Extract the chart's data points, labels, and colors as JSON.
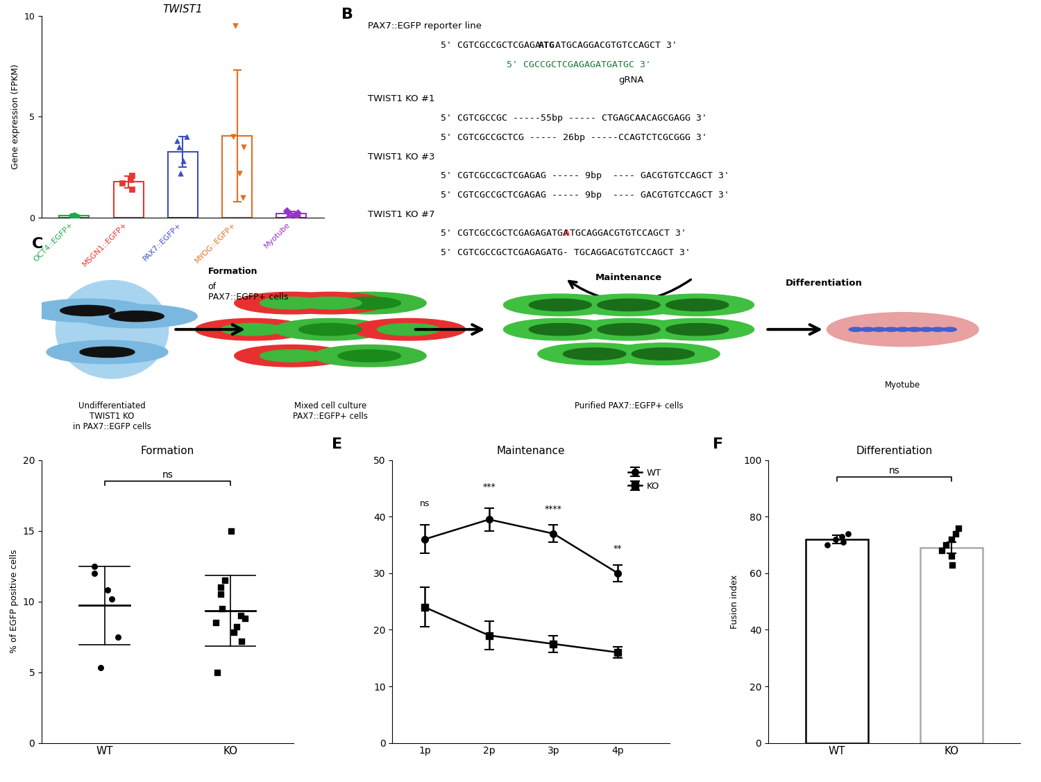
{
  "panel_A": {
    "title": "TWIST1",
    "ylabel": "Gene expression (FPKM)",
    "ylim": [
      0,
      10
    ],
    "yticks": [
      0,
      5,
      10
    ],
    "categories": [
      "OCT4::EGFP+",
      "MSGN1::EGFP+",
      "PAX7::EGFP+",
      "MYOG::EGFP+",
      "Myotube"
    ],
    "colors": [
      "#1ca84c",
      "#e8372e",
      "#3a4fc4",
      "#e07020",
      "#9932cc"
    ],
    "scatter_data": {
      "OCT4::EGFP+": [
        0.05,
        0.08,
        0.1,
        0.12
      ],
      "MSGN1::EGFP+": [
        1.4,
        1.7,
        1.9,
        2.1
      ],
      "PAX7::EGFP+": [
        2.2,
        2.8,
        3.5,
        3.8,
        4.0
      ],
      "MYOG::EGFP+": [
        1.0,
        2.2,
        3.5,
        4.0,
        9.5
      ],
      "Myotube": [
        0.05,
        0.1,
        0.15,
        0.25,
        0.3,
        0.35
      ]
    },
    "marker_styles_list": [
      "o",
      "s",
      "^",
      "v",
      "D"
    ]
  },
  "panel_D": {
    "title": "Formation",
    "ylabel": "% of EGFP positive cells",
    "ylim": [
      0,
      20
    ],
    "yticks": [
      0,
      5,
      10,
      15,
      20
    ],
    "groups": [
      "WT",
      "KO"
    ],
    "wt_points": [
      5.3,
      7.5,
      10.2,
      10.8,
      12.5,
      12.0
    ],
    "ko_points": [
      5.0,
      7.2,
      7.8,
      8.2,
      8.5,
      8.8,
      9.0,
      9.5,
      10.5,
      11.0,
      11.5,
      15.0
    ],
    "significance": "ns"
  },
  "panel_E": {
    "title": "Maintenance",
    "ylim": [
      0,
      50
    ],
    "yticks": [
      0,
      10,
      20,
      30,
      40,
      50
    ],
    "xticklabels": [
      "1p",
      "2p",
      "3p",
      "4p"
    ],
    "wt_means": [
      36,
      39.5,
      37,
      30
    ],
    "wt_errors": [
      2.5,
      2.0,
      1.5,
      1.5
    ],
    "ko_means": [
      24,
      19,
      17.5,
      16
    ],
    "ko_errors": [
      3.5,
      2.5,
      1.5,
      1.0
    ],
    "significance": [
      "ns",
      "***",
      "****",
      "**"
    ]
  },
  "panel_F": {
    "title": "Differentiation",
    "ylabel": "Fusion index",
    "ylim": [
      0,
      100
    ],
    "yticks": [
      0,
      20,
      40,
      60,
      80,
      100
    ],
    "groups": [
      "WT",
      "KO"
    ],
    "wt_mean": 72,
    "ko_mean": 69,
    "wt_error": 1.5,
    "ko_error": 2.0,
    "wt_points": [
      70,
      71,
      72,
      73,
      74
    ],
    "ko_points": [
      63,
      66,
      68,
      70,
      72,
      74,
      76
    ],
    "bar_colors": [
      "white",
      "white"
    ],
    "bar_edge_colors": [
      "black",
      "#aaaaaa"
    ]
  }
}
